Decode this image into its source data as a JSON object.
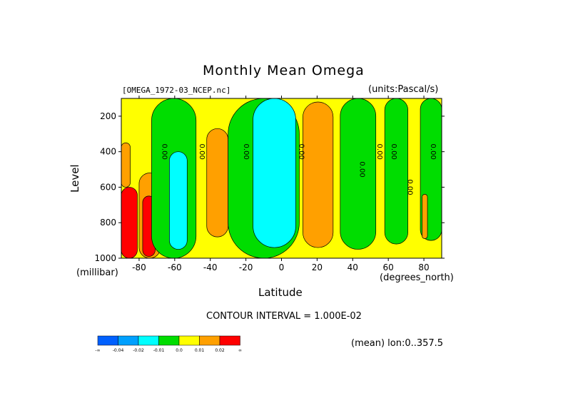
{
  "chart_data": {
    "type": "heatmap",
    "title": "Monthly Mean Omega",
    "source_file": "[OMEGA_1972-03_NCEP.nc]",
    "units": "(units:Pascal/s)",
    "xlabel": "Latitude",
    "x_units": "(degrees_north)",
    "ylabel": "Level",
    "y_units": "(millibar)",
    "xlim": [
      -90,
      90
    ],
    "ylim": [
      1000,
      100
    ],
    "x_ticks": [
      -80,
      -60,
      -40,
      -20,
      0,
      20,
      40,
      60,
      80
    ],
    "y_ticks": [
      200,
      400,
      600,
      800,
      1000
    ],
    "contour_interval": "CONTOUR INTERVAL = 1.000E-02",
    "footer_note": "(mean) lon:0..357.5",
    "contour_label": "0.00",
    "contour_label_lat": [
      -67,
      -46,
      -21,
      10,
      44,
      54,
      62,
      71,
      84
    ],
    "contour_label_level": [
      400,
      400,
      400,
      400,
      500,
      400,
      400,
      600,
      400
    ],
    "colorbar": {
      "colors": [
        "#0060ff",
        "#00a0ff",
        "#00ffff",
        "#00dd00",
        "#ffff00",
        "#ffa000",
        "#ff0000"
      ],
      "tick_labels": [
        "-∞",
        "-0.04",
        "-0.02",
        "-0.01",
        "0.0",
        "0.01",
        "0.02",
        "∞"
      ]
    },
    "regions": [
      {
        "fill": "#ffff00",
        "bounds_lat": [
          -90,
          90
        ],
        "bounds_level": [
          100,
          1000
        ],
        "value_class": "0.0 to 0.01"
      },
      {
        "fill": "#ffa000",
        "bounds_lat": [
          -90,
          -85
        ],
        "bounds_level": [
          350,
          600
        ],
        "value_class": "0.01 to 0.02"
      },
      {
        "fill": "#ffa000",
        "bounds_lat": [
          -80,
          -68
        ],
        "bounds_level": [
          520,
          1000
        ],
        "value_class": "0.01 to 0.02"
      },
      {
        "fill": "#ff0000",
        "bounds_lat": [
          -90,
          -81
        ],
        "bounds_level": [
          600,
          1000
        ],
        "value_class": "> 0.02"
      },
      {
        "fill": "#ff0000",
        "bounds_lat": [
          -78,
          -71
        ],
        "bounds_level": [
          650,
          990
        ],
        "value_class": "> 0.02"
      },
      {
        "fill": "#00dd00",
        "bounds_lat": [
          -73,
          -48
        ],
        "bounds_level": [
          100,
          1000
        ],
        "value_class": "-0.01 to 0.0"
      },
      {
        "fill": "#00ffff",
        "bounds_lat": [
          -63,
          -53
        ],
        "bounds_level": [
          400,
          950
        ],
        "value_class": "-0.02 to -0.01"
      },
      {
        "fill": "#ffa000",
        "bounds_lat": [
          -42,
          -30
        ],
        "bounds_level": [
          270,
          880
        ],
        "value_class": "0.01 to 0.02"
      },
      {
        "fill": "#00dd00",
        "bounds_lat": [
          -30,
          10
        ],
        "bounds_level": [
          100,
          1000
        ],
        "value_class": "-0.01 to 0.0"
      },
      {
        "fill": "#00ffff",
        "bounds_lat": [
          -16,
          8
        ],
        "bounds_level": [
          100,
          940
        ],
        "value_class": "-0.02 to -0.01"
      },
      {
        "fill": "#ffa000",
        "bounds_lat": [
          12,
          29
        ],
        "bounds_level": [
          120,
          940
        ],
        "value_class": "0.01 to 0.02"
      },
      {
        "fill": "#00dd00",
        "bounds_lat": [
          33,
          53
        ],
        "bounds_level": [
          100,
          950
        ],
        "value_class": "-0.01 to 0.0"
      },
      {
        "fill": "#00dd00",
        "bounds_lat": [
          58,
          71
        ],
        "bounds_level": [
          100,
          920
        ],
        "value_class": "-0.01 to 0.0"
      },
      {
        "fill": "#00dd00",
        "bounds_lat": [
          78,
          90
        ],
        "bounds_level": [
          100,
          900
        ],
        "value_class": "-0.01 to 0.0"
      },
      {
        "fill": "#ffa000",
        "bounds_lat": [
          79,
          82
        ],
        "bounds_level": [
          640,
          890
        ],
        "value_class": "0.01 to 0.02"
      }
    ]
  }
}
